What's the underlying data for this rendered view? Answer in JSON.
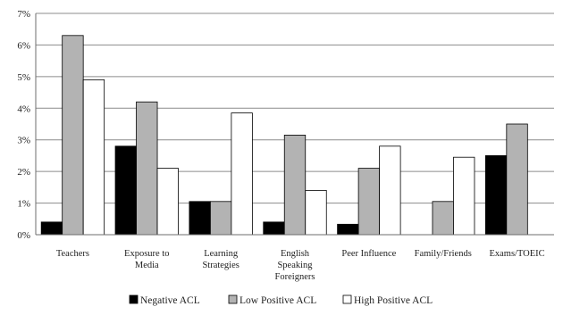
{
  "chart_data": {
    "type": "bar",
    "categories": [
      [
        "Teachers"
      ],
      [
        "Exposure to",
        "Media"
      ],
      [
        "Learning",
        "Strategies"
      ],
      [
        "English",
        "Speaking",
        "Foreigners"
      ],
      [
        "Peer Influence"
      ],
      [
        "Family/Friends"
      ],
      [
        "Exams/TOEIC"
      ]
    ],
    "series": [
      {
        "name": "Negative ACL",
        "values": [
          0.4,
          2.8,
          1.05,
          0.4,
          0.33,
          0,
          2.5
        ],
        "color": "#000000"
      },
      {
        "name": "Low Positive ACL",
        "values": [
          6.3,
          4.2,
          1.05,
          3.15,
          2.1,
          1.05,
          3.5
        ],
        "color": "#b3b3b3"
      },
      {
        "name": "High Positive ACL",
        "values": [
          4.9,
          2.1,
          3.85,
          1.4,
          2.8,
          2.45,
          null
        ],
        "color": "#ffffff"
      }
    ],
    "yticks": [
      "0%",
      "1%",
      "2%",
      "3%",
      "4%",
      "5%",
      "6%",
      "7%"
    ],
    "ylim": [
      0,
      7
    ],
    "grid": true,
    "legend_position": "bottom"
  }
}
